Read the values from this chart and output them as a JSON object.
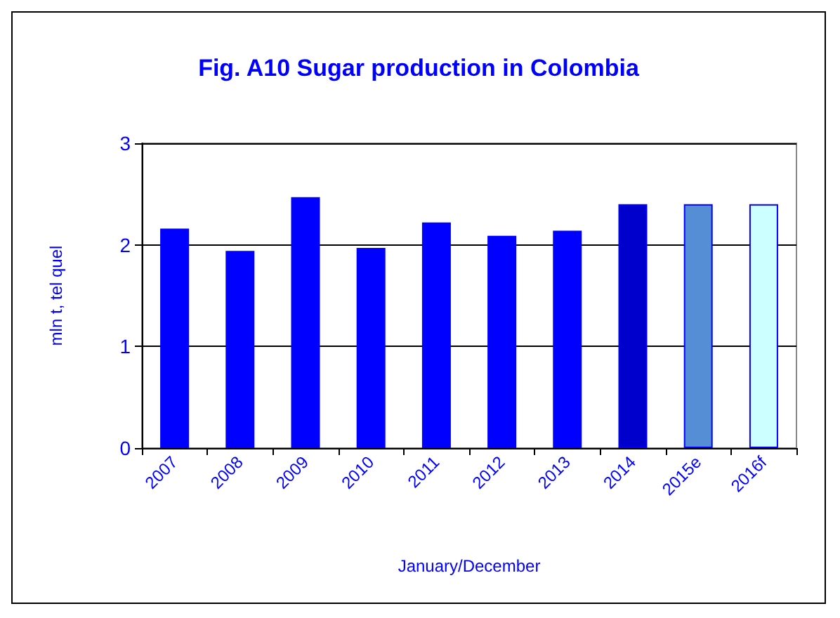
{
  "chart_data": {
    "type": "bar",
    "title": "Fig. A10 Sugar production in Colombia",
    "xlabel": "January/December",
    "ylabel": "mln t, tel quel",
    "categories": [
      "2007",
      "2008",
      "2009",
      "2010",
      "2011",
      "2012",
      "2013",
      "2014",
      "2015e",
      "2016f"
    ],
    "values": [
      2.16,
      1.94,
      2.47,
      1.97,
      2.22,
      2.09,
      2.14,
      2.4,
      2.4,
      2.4
    ],
    "colors": [
      "#0000ff",
      "#0000ff",
      "#0000ff",
      "#0000ff",
      "#0000ff",
      "#0000ff",
      "#0000ff",
      "#0000cc",
      "#558ed5",
      "#ccffff"
    ],
    "ylim": [
      0,
      3
    ],
    "yticks": [
      0,
      1,
      2,
      3
    ],
    "grid": "y"
  }
}
